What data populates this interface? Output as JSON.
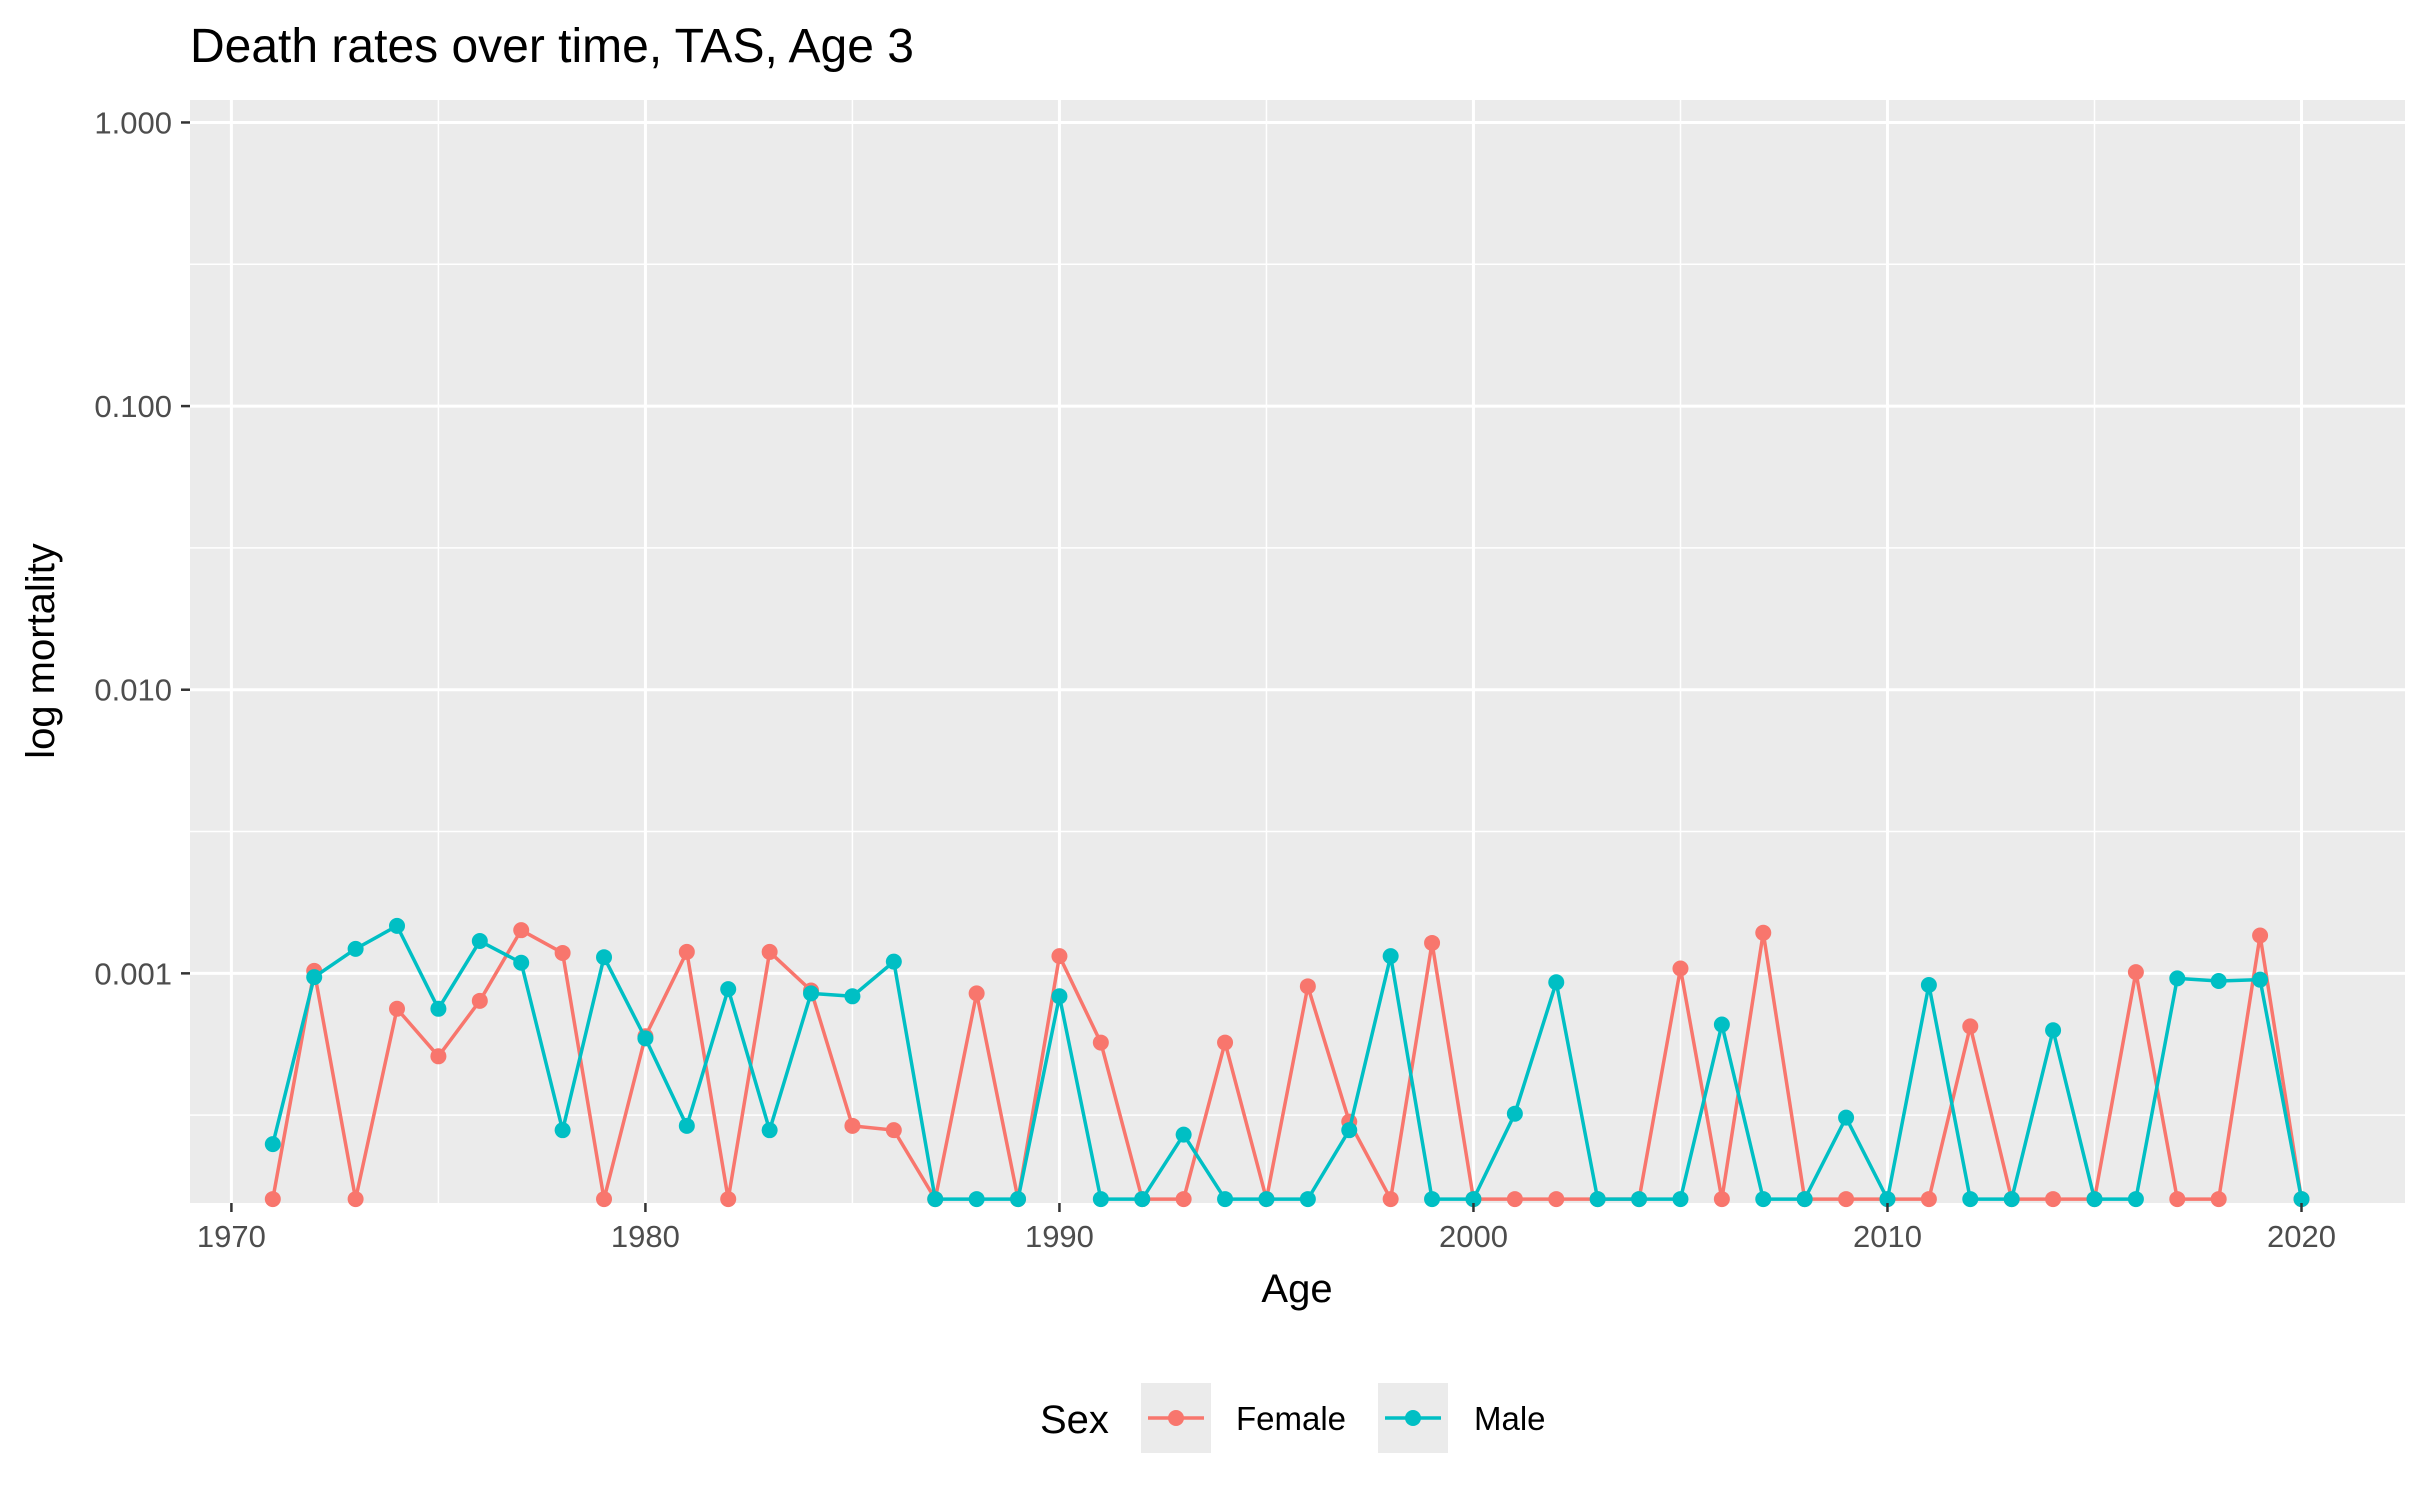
{
  "chart_data": {
    "type": "line",
    "title": "Death rates over time, TAS, Age 3",
    "xlabel": "Age",
    "ylabel": "log mortality",
    "yscale": "log",
    "xlim": [
      1969.0,
      2022.5
    ],
    "ylim": [
      0.000155,
      1.2
    ],
    "x_ticks": [
      1970,
      1980,
      1990,
      2000,
      2010,
      2020
    ],
    "x_tick_labels": [
      "1970",
      "1980",
      "1990",
      "2000",
      "2010",
      "2020"
    ],
    "y_ticks": [
      0.001,
      0.01,
      0.1,
      1.0
    ],
    "y_tick_labels": [
      "0.001",
      "0.010",
      "0.100",
      "1.000"
    ],
    "grid": true,
    "legend": {
      "title": "Sex",
      "position": "bottom"
    },
    "x": [
      1971,
      1972,
      1973,
      1974,
      1975,
      1976,
      1977,
      1978,
      1979,
      1980,
      1981,
      1982,
      1983,
      1984,
      1985,
      1986,
      1987,
      1988,
      1989,
      1990,
      1991,
      1992,
      1993,
      1994,
      1995,
      1996,
      1997,
      1998,
      1999,
      2000,
      2001,
      2002,
      2003,
      2004,
      2005,
      2006,
      2007,
      2008,
      2009,
      2010,
      2011,
      2012,
      2013,
      2014,
      2015,
      2016,
      2017,
      2018,
      2019,
      2020
    ],
    "series": [
      {
        "name": "Female",
        "color": "#F8766D",
        "values": [
          0.00016,
          0.00102,
          0.00016,
          0.00075,
          0.00051,
          0.0008,
          0.00142,
          0.00118,
          0.00016,
          0.0006,
          0.00119,
          0.00016,
          0.00119,
          0.00087,
          0.00029,
          0.00028,
          0.00016,
          0.00085,
          0.00016,
          0.00115,
          0.00057,
          0.00016,
          0.00016,
          0.00057,
          0.00016,
          0.0009,
          0.0003,
          0.00016,
          0.00128,
          0.00016,
          0.00016,
          0.00016,
          0.00016,
          0.00016,
          0.00104,
          0.00016,
          0.00139,
          0.00016,
          0.00016,
          0.00016,
          0.00016,
          0.00065,
          0.00016,
          0.00016,
          0.00016,
          0.00101,
          0.00016,
          0.00016,
          0.00136,
          0.00016
        ]
      },
      {
        "name": "Male",
        "color": "#00BFC4",
        "values": [
          0.00025,
          0.00097,
          0.00122,
          0.00147,
          0.00075,
          0.0013,
          0.00109,
          0.00028,
          0.00114,
          0.00059,
          0.00029,
          0.00088,
          0.00028,
          0.00085,
          0.00083,
          0.0011,
          0.00016,
          0.00016,
          0.00016,
          0.00083,
          0.00016,
          0.00016,
          0.00027,
          0.00016,
          0.00016,
          0.00016,
          0.00028,
          0.00115,
          0.00016,
          0.00016,
          0.00032,
          0.00093,
          0.00016,
          0.00016,
          0.00016,
          0.00066,
          0.00016,
          0.00016,
          0.00031,
          0.00016,
          0.00091,
          0.00016,
          0.00016,
          0.00063,
          0.00016,
          0.00016,
          0.00096,
          0.00094,
          0.00095,
          0.00016
        ]
      }
    ]
  }
}
